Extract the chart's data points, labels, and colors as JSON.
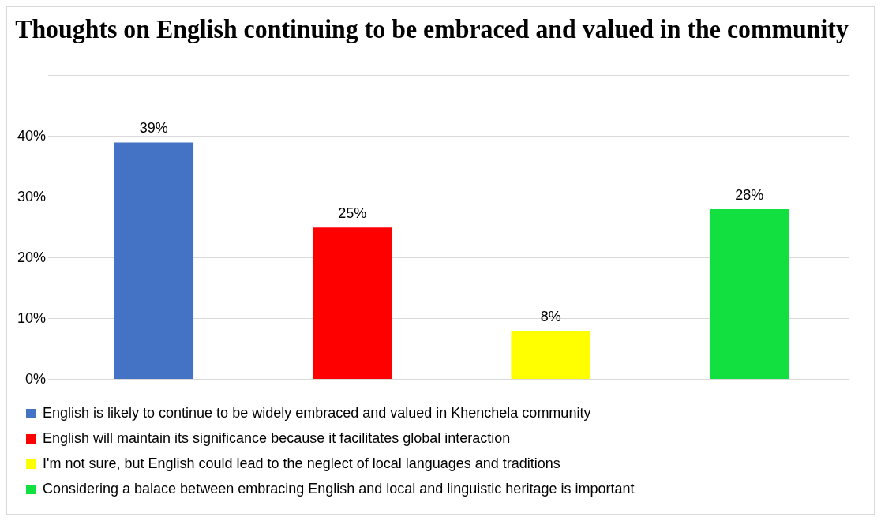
{
  "chart_data": {
    "type": "bar",
    "title": "Thoughts on English continuing to be embraced and valued in the community",
    "categories": [
      null,
      null,
      null,
      null
    ],
    "series": [
      {
        "name": "English is likely to continue to be widely embraced and valued in Khenchela community",
        "color": "#4472c4",
        "values": [
          39,
          null,
          null,
          null
        ],
        "value_labels": [
          "39%",
          null,
          null,
          null
        ]
      },
      {
        "name": "English will maintain its significance because it facilitates global interaction",
        "color": "#ff0000",
        "values": [
          null,
          25,
          null,
          null
        ],
        "value_labels": [
          null,
          "25%",
          null,
          null
        ]
      },
      {
        "name": "I'm not sure, but English could lead to the neglect of local languages and traditions",
        "color": "#ffff00",
        "values": [
          null,
          null,
          8,
          null
        ],
        "value_labels": [
          null,
          null,
          "8%",
          null
        ]
      },
      {
        "name": "Considering a balace between embracing English and local and linguistic heritage is important",
        "color": "#11e040",
        "values": [
          null,
          null,
          null,
          28
        ],
        "value_labels": [
          null,
          null,
          null,
          "28%"
        ]
      }
    ],
    "ylim": [
      0,
      50
    ],
    "yticks": [
      {
        "value": 0,
        "label": "0%"
      },
      {
        "value": 10,
        "label": "10%"
      },
      {
        "value": 20,
        "label": "20%"
      },
      {
        "value": 30,
        "label": "30%"
      },
      {
        "value": 40,
        "label": "40%"
      },
      {
        "value": 50,
        "label": null
      }
    ],
    "grid": "y",
    "legend": "bottom"
  }
}
